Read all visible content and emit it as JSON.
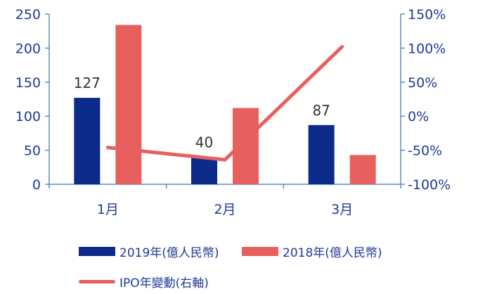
{
  "chart_data": {
    "type": "bar",
    "categories": [
      "1月",
      "2月",
      "3月"
    ],
    "series": [
      {
        "name": "2019年(億人民幣)",
        "values": [
          127,
          40,
          87
        ],
        "color": "#0b2a8a",
        "axis": "left"
      },
      {
        "name": "2018年(億人民幣)",
        "values": [
          234,
          112,
          43
        ],
        "color": "#e8605e",
        "axis": "left"
      },
      {
        "name": "IPO年變動(右軸)",
        "type": "line",
        "values": [
          -46,
          -64,
          102
        ],
        "color": "#e8605e",
        "axis": "right"
      }
    ],
    "data_labels": [
      "127",
      "40",
      "87"
    ],
    "ylim": [
      0,
      250
    ],
    "y2lim": [
      -100,
      150
    ],
    "yticks": [
      "0",
      "50",
      "100",
      "150",
      "200",
      "250"
    ],
    "y2ticks": [
      "-100%",
      "-50%",
      "0%",
      "50%",
      "100%",
      "150%"
    ],
    "axis_color": "#5b8db8",
    "title": "",
    "xlabel": "",
    "ylabel": ""
  }
}
